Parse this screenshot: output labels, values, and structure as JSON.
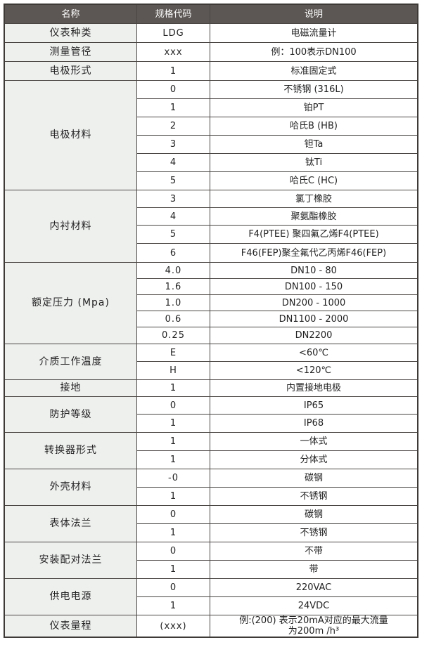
{
  "header": {
    "name": "名称",
    "code": "规格代码",
    "desc": "说明"
  },
  "groups": [
    {
      "name": "仪表种类",
      "rows": [
        {
          "code": "LDG",
          "desc": "电磁流量计"
        }
      ]
    },
    {
      "name": "测量管径",
      "rows": [
        {
          "code": "xxx",
          "desc": "例：100表示DN100"
        }
      ]
    },
    {
      "name": "电极形式",
      "rows": [
        {
          "code": "1",
          "desc": "标准固定式"
        }
      ]
    },
    {
      "name": "电极材料",
      "rows": [
        {
          "code": "0",
          "desc": "不锈钢 (316L)"
        },
        {
          "code": "1",
          "desc": "铂PT"
        },
        {
          "code": "2",
          "desc": "哈氏B (HB)"
        },
        {
          "code": "3",
          "desc": "钽Ta"
        },
        {
          "code": "4",
          "desc": "钛Ti"
        },
        {
          "code": "5",
          "desc": "哈氏C (HC)"
        }
      ]
    },
    {
      "name": "内衬材料",
      "rows": [
        {
          "code": "3",
          "desc": "氯丁橡胶"
        },
        {
          "code": "4",
          "desc": "聚氨酯橡胶"
        },
        {
          "code": "5",
          "desc": "F4(PTEE) 聚四氟乙烯F4(PTEE)"
        },
        {
          "code": "6",
          "desc": "F46(FEP)聚全氟代乙丙烯F46(FEP)"
        }
      ]
    },
    {
      "name": "额定压力 (Mpa)",
      "rows": [
        {
          "code": "4.0",
          "desc": "DN10 - 80"
        },
        {
          "code": "1.6",
          "desc": "DN100 - 150"
        },
        {
          "code": "1.0",
          "desc": "DN200 - 1000"
        },
        {
          "code": "0.6",
          "desc": "DN1100 - 2000"
        },
        {
          "code": "0.25",
          "desc": "DN2200"
        }
      ]
    },
    {
      "name": "介质工作温度",
      "rows": [
        {
          "code": "E",
          "desc": "<60℃"
        },
        {
          "code": "H",
          "desc": "<120℃"
        }
      ]
    },
    {
      "name": "接地",
      "rows": [
        {
          "code": "1",
          "desc": "内置接地电极"
        }
      ]
    },
    {
      "name": "防护等级",
      "rows": [
        {
          "code": "0",
          "desc": "IP65"
        },
        {
          "code": "1",
          "desc": "IP68"
        }
      ]
    },
    {
      "name": "转换器形式",
      "rows": [
        {
          "code": "1",
          "desc": "一体式"
        },
        {
          "code": "1",
          "desc": "分体式"
        }
      ]
    },
    {
      "name": "外壳材料",
      "rows": [
        {
          "code": "-0",
          "desc": "碳钢"
        },
        {
          "code": "1",
          "desc": "不锈钢"
        }
      ]
    },
    {
      "name": "表体法兰",
      "rows": [
        {
          "code": "0",
          "desc": "碳钢"
        },
        {
          "code": "1",
          "desc": "不锈钢"
        }
      ]
    },
    {
      "name": "安装配对法兰",
      "rows": [
        {
          "code": "0",
          "desc": "不带"
        },
        {
          "code": "1",
          "desc": "带"
        }
      ]
    },
    {
      "name": "供电电源",
      "rows": [
        {
          "code": "0",
          "desc": "220VAC"
        },
        {
          "code": "1",
          "desc": "24VDC"
        }
      ]
    },
    {
      "name": "仪表量程",
      "rows": [
        {
          "code": "(xxx)",
          "desc": "例:(200) 表示20mA对应的最大流量为200m /h³"
        }
      ]
    }
  ]
}
